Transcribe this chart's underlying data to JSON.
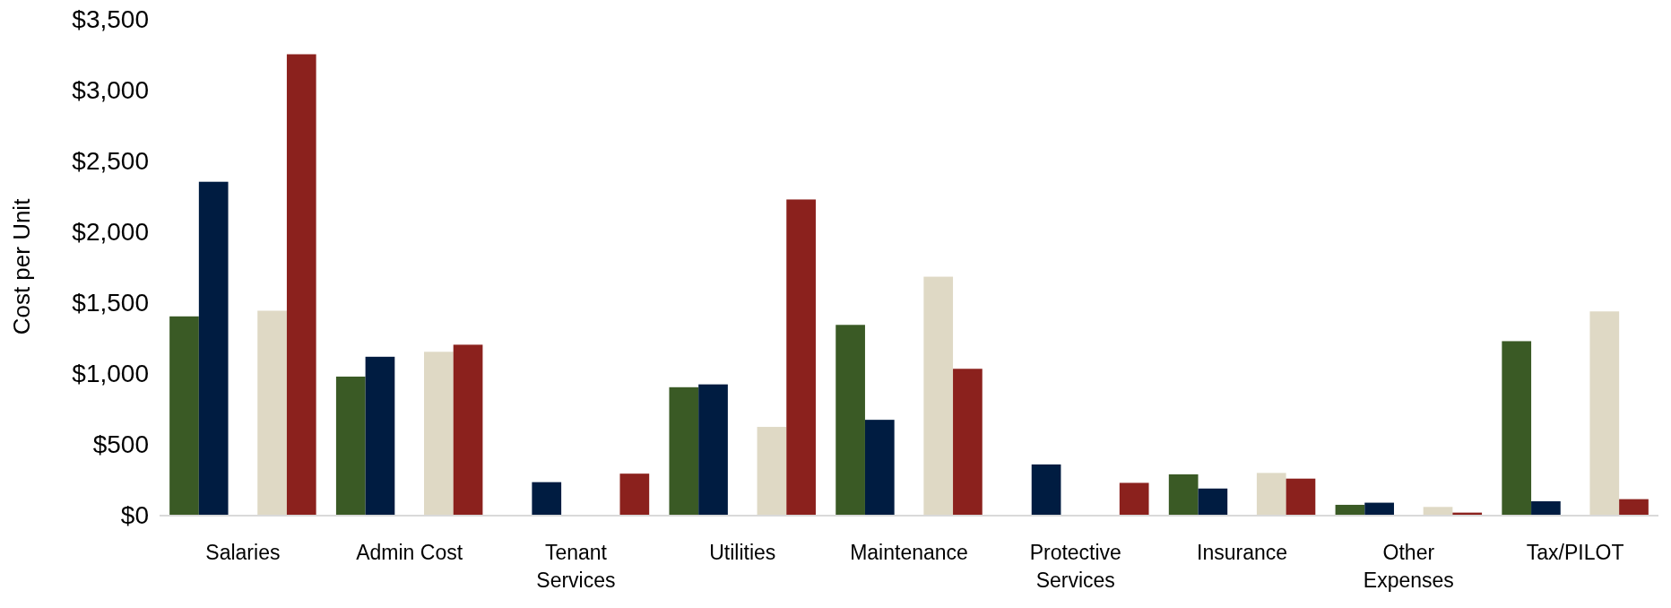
{
  "chart_data": {
    "type": "bar",
    "ylabel": "Cost per Unit",
    "categories": [
      "Salaries",
      "Admin Cost",
      "Tenant Services",
      "Utilities",
      "Maintenance",
      "Protective Services",
      "Insurance",
      "Other Expenses",
      "Tax/PILOT"
    ],
    "series": [
      {
        "color": "#3a5a25",
        "values": [
          1400,
          975,
          null,
          900,
          1340,
          null,
          285,
          70,
          1225
        ]
      },
      {
        "color": "#001c41",
        "values": [
          2350,
          1115,
          230,
          920,
          670,
          355,
          185,
          85,
          95
        ]
      },
      {
        "values": [
          null,
          null,
          null,
          null,
          null,
          null,
          null,
          null,
          null
        ]
      },
      {
        "color": "#dfd9c5",
        "values": [
          1440,
          1150,
          null,
          620,
          1680,
          null,
          295,
          55,
          1435
        ]
      },
      {
        "color": "#8b211d",
        "values": [
          3250,
          1200,
          290,
          2225,
          1030,
          225,
          255,
          15,
          110
        ]
      }
    ],
    "ylim": [
      0,
      3500
    ],
    "yticks": [
      {
        "value": 0,
        "label": "$0"
      },
      {
        "value": 500,
        "label": "$500"
      },
      {
        "value": 1000,
        "label": "$1,000"
      },
      {
        "value": 1500,
        "label": "$1,500"
      },
      {
        "value": 2000,
        "label": "$2,000"
      },
      {
        "value": 2500,
        "label": "$2,500"
      },
      {
        "value": 3000,
        "label": "$3,000"
      },
      {
        "value": 3500,
        "label": "$3,500"
      }
    ],
    "grid": false
  }
}
